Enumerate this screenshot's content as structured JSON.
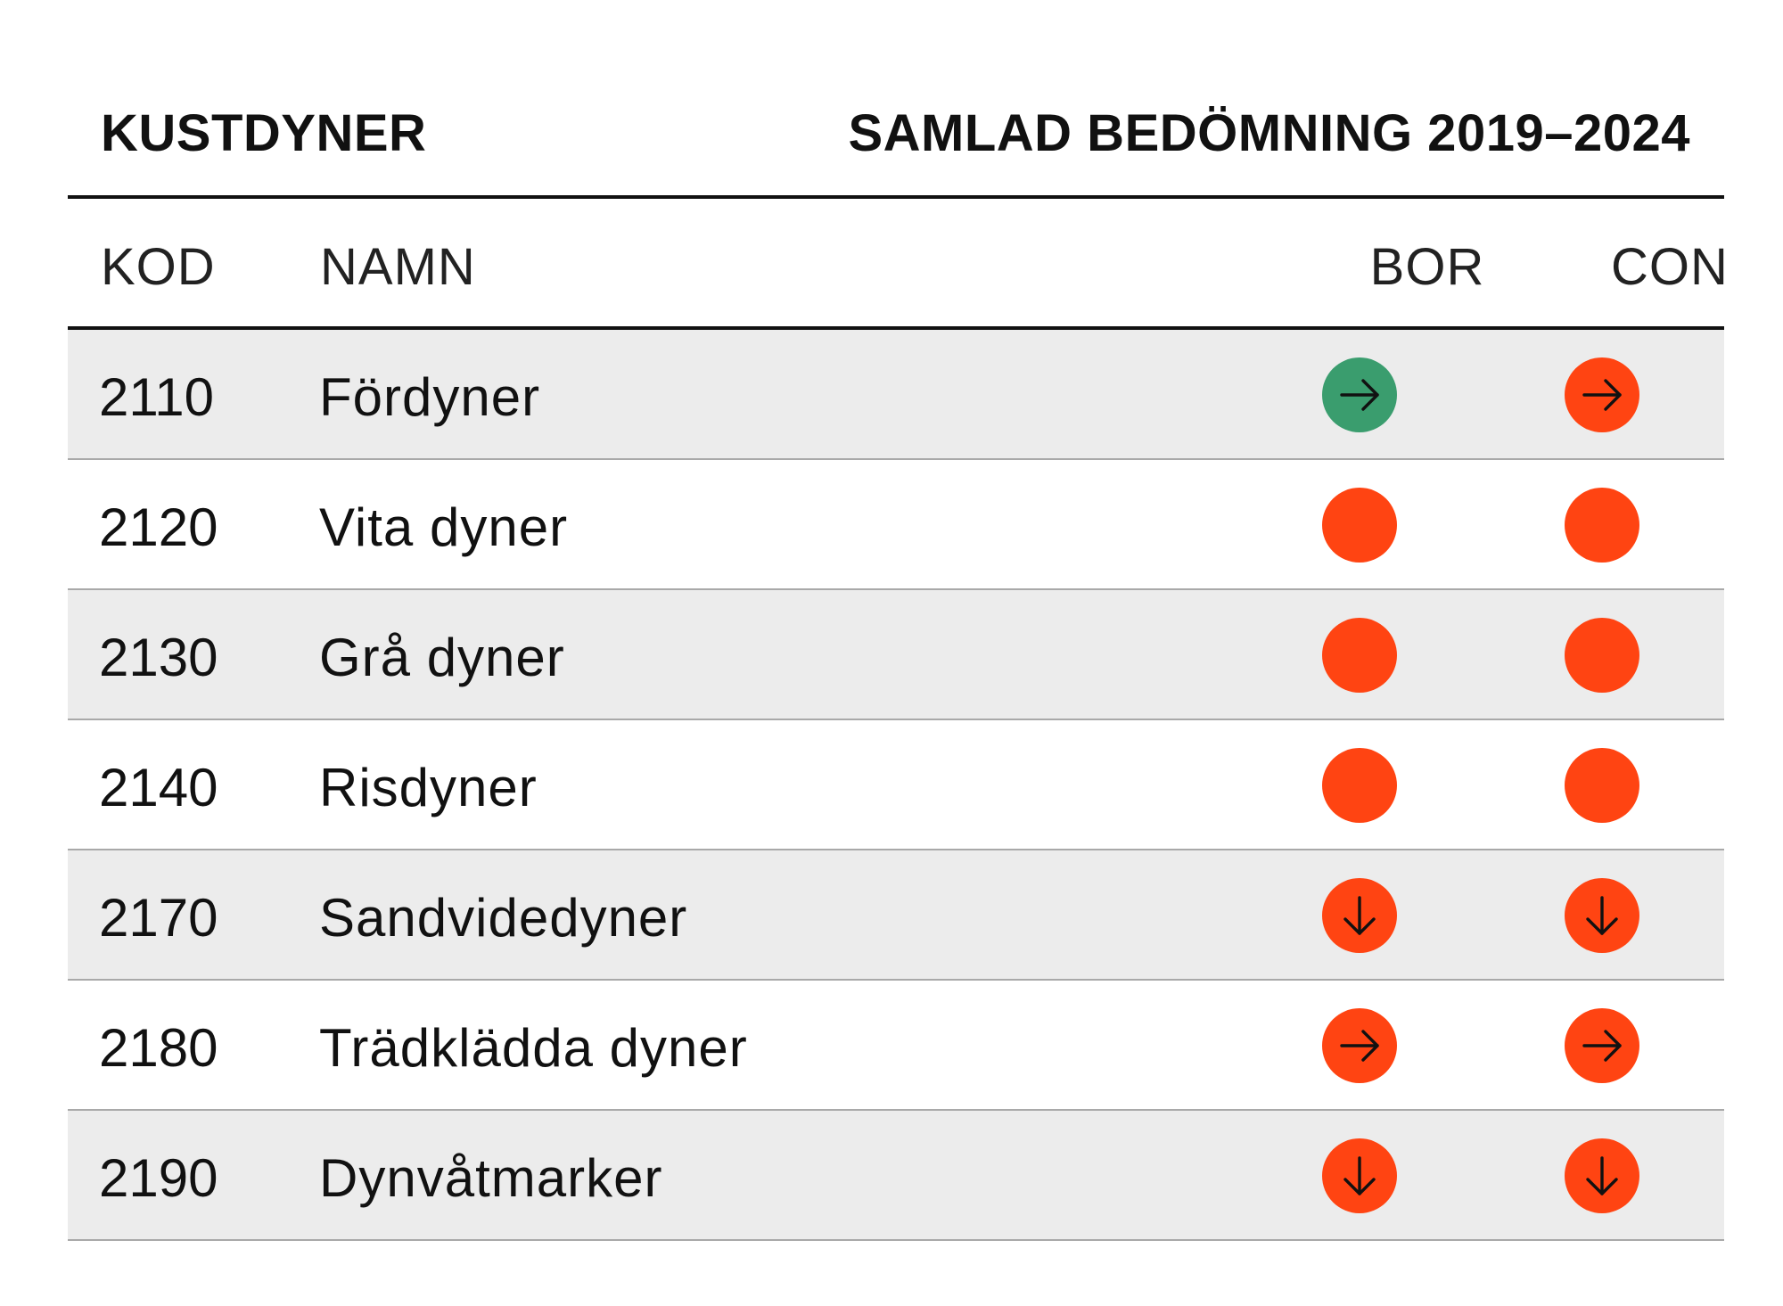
{
  "title": {
    "left": "KUSTDYNER",
    "right": "SAMLAD BEDÖMNING 2019–2024"
  },
  "headers": {
    "kod": "KOD",
    "namn": "NAMN",
    "bor": "BOR",
    "con": "CON"
  },
  "colors": {
    "favourable": "#3a9d6e",
    "unfavourable": "#ff4412",
    "shaded_row": "#ececec",
    "text": "#111111"
  },
  "rows": [
    {
      "kod": "2110",
      "namn": "Fördyner",
      "bor": {
        "status": "favourable",
        "trend": "stable"
      },
      "con": {
        "status": "unfavourable",
        "trend": "stable"
      }
    },
    {
      "kod": "2120",
      "namn": "Vita dyner",
      "bor": {
        "status": "unfavourable",
        "trend": "none"
      },
      "con": {
        "status": "unfavourable",
        "trend": "none"
      }
    },
    {
      "kod": "2130",
      "namn": "Grå dyner",
      "bor": {
        "status": "unfavourable",
        "trend": "none"
      },
      "con": {
        "status": "unfavourable",
        "trend": "none"
      }
    },
    {
      "kod": "2140",
      "namn": "Risdyner",
      "bor": {
        "status": "unfavourable",
        "trend": "none"
      },
      "con": {
        "status": "unfavourable",
        "trend": "none"
      }
    },
    {
      "kod": "2170",
      "namn": "Sandvidedyner",
      "bor": {
        "status": "unfavourable",
        "trend": "declining"
      },
      "con": {
        "status": "unfavourable",
        "trend": "declining"
      }
    },
    {
      "kod": "2180",
      "namn": "Trädklädda dyner",
      "bor": {
        "status": "unfavourable",
        "trend": "stable"
      },
      "con": {
        "status": "unfavourable",
        "trend": "stable"
      }
    },
    {
      "kod": "2190",
      "namn": "Dynvåtmarker",
      "bor": {
        "status": "unfavourable",
        "trend": "declining"
      },
      "con": {
        "status": "unfavourable",
        "trend": "declining"
      }
    }
  ]
}
